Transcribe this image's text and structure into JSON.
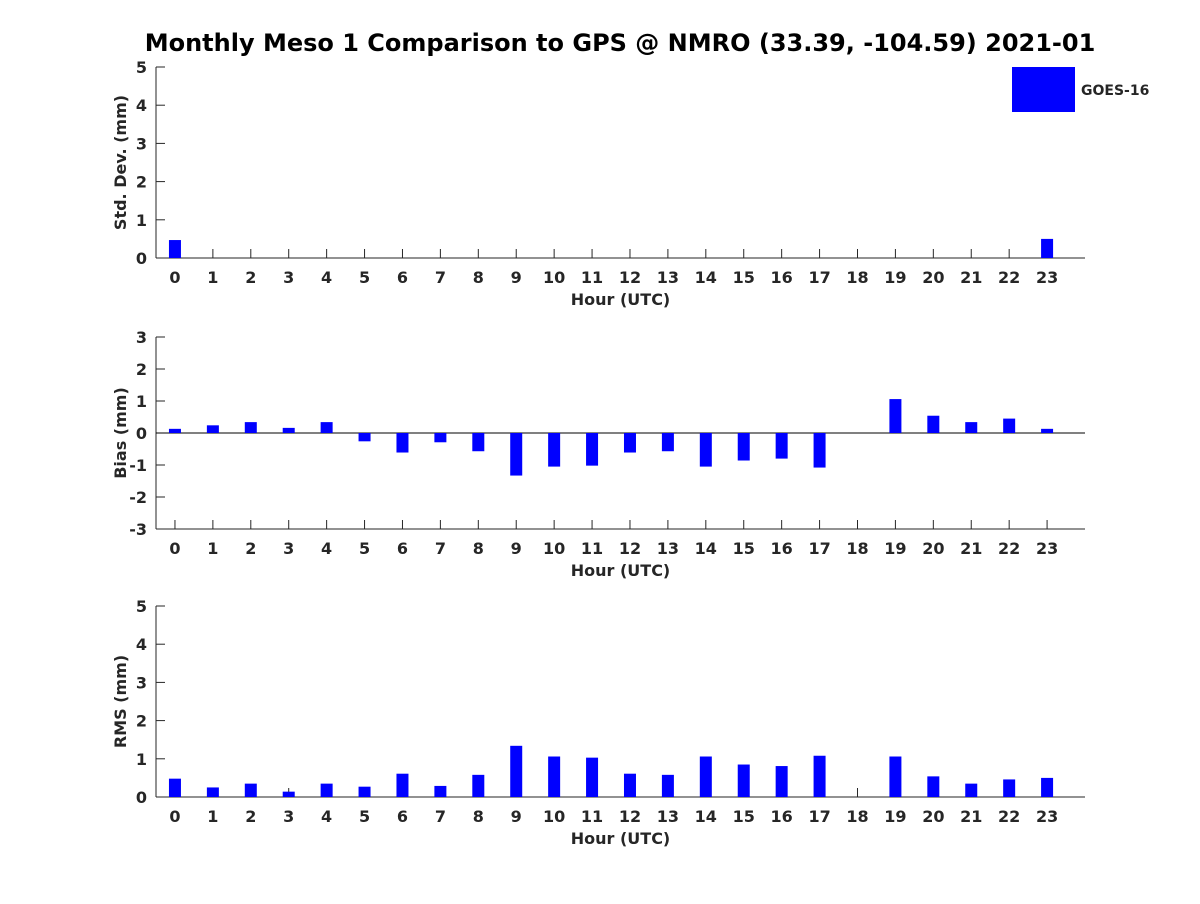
{
  "title": "Monthly Meso 1 Comparison to GPS @ NMRO (33.39, -104.59) 2021-01",
  "legend": {
    "label": "GOES-16",
    "color": "#0000ff",
    "position": "top-right"
  },
  "chart_data": [
    {
      "type": "bar",
      "categories": [
        "0",
        "1",
        "2",
        "3",
        "4",
        "5",
        "6",
        "7",
        "8",
        "9",
        "10",
        "11",
        "12",
        "13",
        "14",
        "15",
        "16",
        "17",
        "18",
        "19",
        "20",
        "21",
        "22",
        "23"
      ],
      "series": [
        {
          "name": "GOES-16",
          "values": [
            0.47,
            null,
            null,
            null,
            null,
            null,
            null,
            null,
            null,
            null,
            null,
            null,
            null,
            null,
            null,
            null,
            null,
            null,
            null,
            null,
            null,
            null,
            null,
            0.5
          ]
        }
      ],
      "xlabel": "Hour (UTC)",
      "ylabel": "Std. Dev. (mm)",
      "ylim": [
        0,
        5
      ],
      "yticks": [
        0,
        1,
        2,
        3,
        4,
        5
      ],
      "grid": false
    },
    {
      "type": "bar",
      "categories": [
        "0",
        "1",
        "2",
        "3",
        "4",
        "5",
        "6",
        "7",
        "8",
        "9",
        "10",
        "11",
        "12",
        "13",
        "14",
        "15",
        "16",
        "17",
        "18",
        "19",
        "20",
        "21",
        "22",
        "23"
      ],
      "series": [
        {
          "name": "GOES-16",
          "values": [
            0.13,
            0.24,
            0.34,
            0.16,
            0.34,
            -0.26,
            -0.61,
            -0.29,
            -0.57,
            -1.33,
            -1.05,
            -1.02,
            -0.61,
            -0.57,
            -1.05,
            -0.86,
            -0.8,
            -1.08,
            null,
            1.06,
            0.54,
            0.34,
            0.45,
            0.13
          ]
        }
      ],
      "xlabel": "Hour (UTC)",
      "ylabel": "Bias (mm)",
      "ylim": [
        -3,
        3
      ],
      "yticks": [
        -3,
        -2,
        -1,
        0,
        1,
        2,
        3
      ],
      "zero_line": true,
      "grid": false
    },
    {
      "type": "bar",
      "categories": [
        "0",
        "1",
        "2",
        "3",
        "4",
        "5",
        "6",
        "7",
        "8",
        "9",
        "10",
        "11",
        "12",
        "13",
        "14",
        "15",
        "16",
        "17",
        "18",
        "19",
        "20",
        "21",
        "22",
        "23"
      ],
      "series": [
        {
          "name": "GOES-16",
          "values": [
            0.48,
            0.25,
            0.35,
            0.14,
            0.35,
            0.27,
            0.61,
            0.29,
            0.58,
            1.34,
            1.06,
            1.03,
            0.61,
            0.58,
            1.06,
            0.85,
            0.81,
            1.08,
            null,
            1.06,
            0.54,
            0.35,
            0.46,
            0.5
          ]
        }
      ],
      "xlabel": "Hour (UTC)",
      "ylabel": "RMS (mm)",
      "ylim": [
        0,
        5
      ],
      "yticks": [
        0,
        1,
        2,
        3,
        4,
        5
      ],
      "grid": false
    }
  ]
}
